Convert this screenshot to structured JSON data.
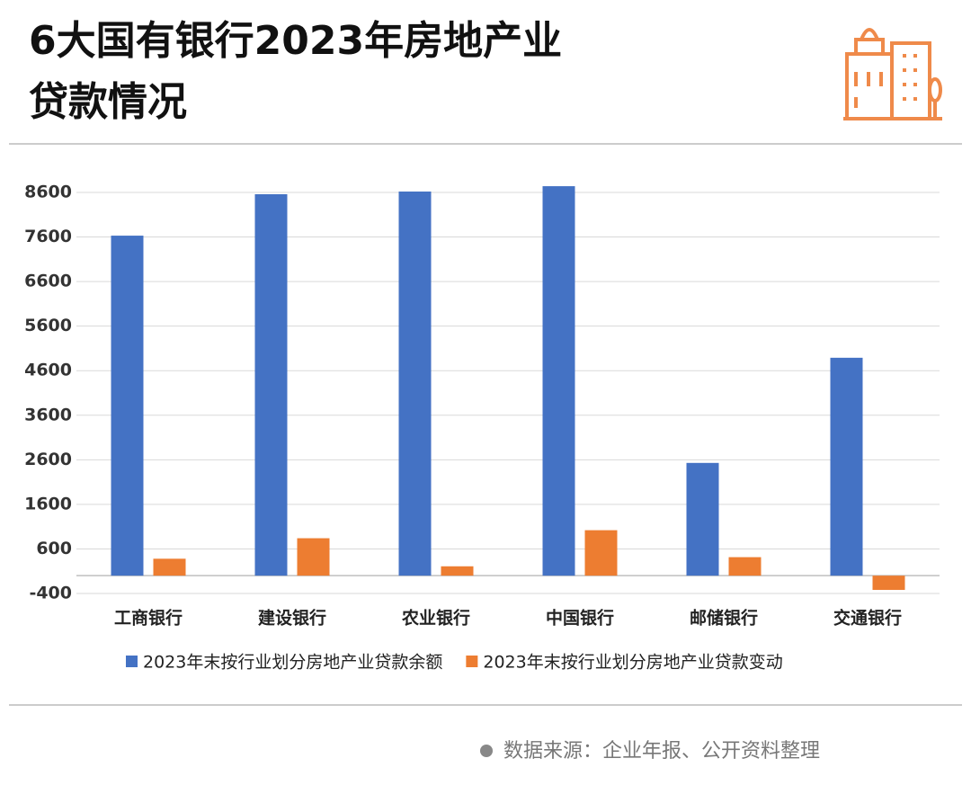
{
  "chart_data": {
    "type": "bar",
    "title": [
      "6大国有银行2023年房地产业",
      "贷款情况"
    ],
    "categories": [
      "工商银行",
      "建设银行",
      "农业银行",
      "中国银行",
      "邮储银行",
      "交通银行"
    ],
    "series": [
      {
        "name": "2023年末按行业划分房地产业贷款余额",
        "color": "#4472c4",
        "values": [
          7630,
          8560,
          8620,
          8740,
          2530,
          4890
        ]
      },
      {
        "name": "2023年末按行业划分房地产业贷款变动",
        "color": "#ed7d31",
        "values": [
          380,
          840,
          210,
          1020,
          415,
          -320
        ]
      }
    ],
    "ylim": [
      -400,
      8600
    ],
    "yticks": [
      -400,
      600,
      1600,
      2600,
      3600,
      4600,
      5600,
      6600,
      7600,
      8600
    ],
    "grid": true,
    "legend": "bottom",
    "source": "数据来源：企业年报、公开资料整理"
  }
}
